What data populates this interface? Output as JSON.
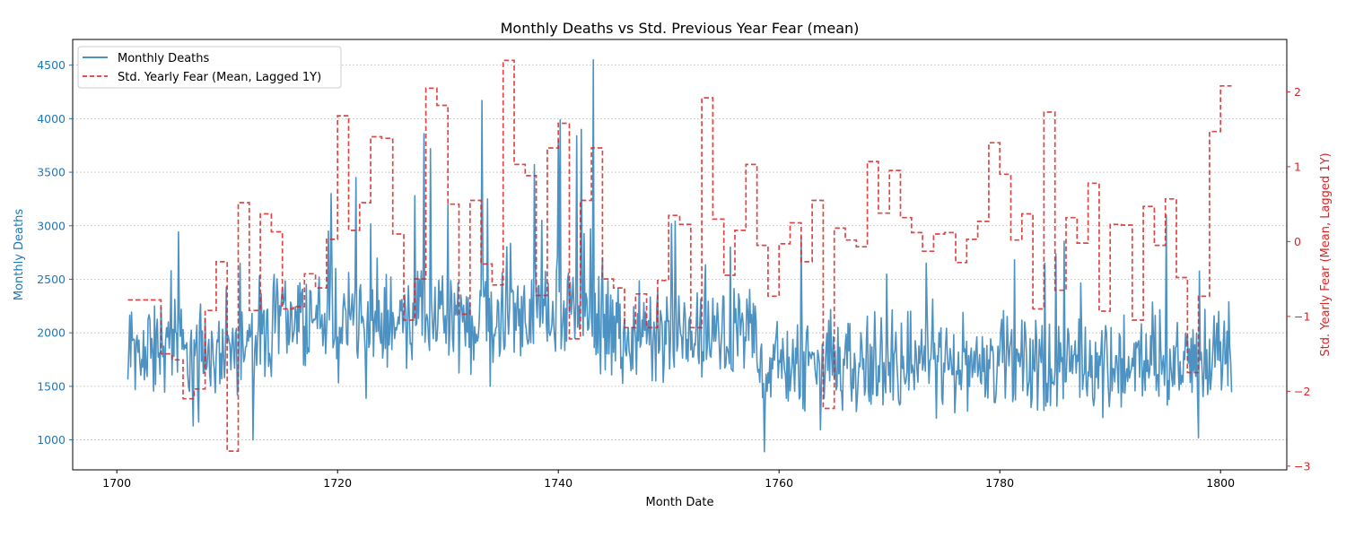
{
  "chart_data": {
    "type": "line",
    "title": "Monthly Deaths vs Std. Previous Year Fear (mean)",
    "xlabel": "Month Date",
    "ylabel_left": "Monthly Deaths",
    "ylabel_right": "Std. Yearly Fear (Mean, Lagged 1Y)",
    "xlim": [
      1696,
      1806
    ],
    "ylim_left": [
      720,
      4740
    ],
    "ylim_right": [
      -3.05,
      2.7
    ],
    "x_ticks": [
      1700,
      1720,
      1740,
      1760,
      1780,
      1800
    ],
    "y_left_ticks": [
      1000,
      1500,
      2000,
      2500,
      3000,
      3500,
      4000,
      4500
    ],
    "y_right_ticks": [
      -3,
      -2,
      -1,
      0,
      1,
      2
    ],
    "grid": "horizontal dotted",
    "legend_position": "top-left",
    "colors": {
      "deaths": "#1f77b4",
      "fear": "#d62728",
      "left_axis": "#1f77b4",
      "right_axis": "#d62728"
    },
    "series": [
      {
        "name": "Monthly Deaths",
        "axis": "left",
        "style": "solid",
        "x_start": 1701,
        "x_end": 1801,
        "n_points": 1201,
        "typical_range": [
          1100,
          2800
        ],
        "peak": {
          "x": 1743.2,
          "y": 4550
        },
        "min": {
          "x": 1758.7,
          "y": 890
        }
      },
      {
        "name": "Std. Yearly Fear (Mean, Lagged 1Y)",
        "axis": "right",
        "style": "dashed-step",
        "years": [
          1701,
          1702,
          1703,
          1704,
          1705,
          1706,
          1707,
          1708,
          1709,
          1710,
          1711,
          1712,
          1713,
          1714,
          1715,
          1716,
          1717,
          1718,
          1719,
          1720,
          1721,
          1722,
          1723,
          1724,
          1725,
          1726,
          1727,
          1728,
          1729,
          1730,
          1731,
          1732,
          1733,
          1734,
          1735,
          1736,
          1737,
          1738,
          1739,
          1740,
          1741,
          1742,
          1743,
          1744,
          1745,
          1746,
          1747,
          1748,
          1749,
          1750,
          1751,
          1752,
          1753,
          1754,
          1755,
          1756,
          1757,
          1758,
          1759,
          1760,
          1761,
          1762,
          1763,
          1764,
          1765,
          1766,
          1767,
          1768,
          1769,
          1770,
          1771,
          1772,
          1773,
          1774,
          1775,
          1776,
          1777,
          1778,
          1779,
          1780,
          1781,
          1782,
          1783,
          1784,
          1785,
          1786,
          1787,
          1788,
          1789,
          1790,
          1791,
          1792,
          1793,
          1794,
          1795,
          1796,
          1797,
          1798,
          1799,
          1800
        ],
        "values": [
          -0.78,
          -0.78,
          -0.78,
          -1.5,
          -1.58,
          -2.1,
          -1.97,
          -0.92,
          -0.27,
          -2.8,
          0.52,
          -0.92,
          0.37,
          0.13,
          -0.9,
          -0.87,
          -0.43,
          -0.62,
          0.03,
          1.68,
          0.15,
          0.52,
          1.4,
          1.38,
          0.1,
          -1.05,
          -0.5,
          2.05,
          1.82,
          0.5,
          -0.97,
          0.55,
          -0.3,
          -0.58,
          2.42,
          1.03,
          0.88,
          -0.72,
          1.25,
          1.58,
          -1.3,
          0.55,
          1.25,
          -0.5,
          -0.62,
          -1.15,
          -0.7,
          -1.15,
          -0.52,
          0.35,
          0.23,
          -1.15,
          1.92,
          0.3,
          -0.45,
          0.15,
          1.03,
          -0.05,
          -0.73,
          -0.03,
          0.25,
          -0.27,
          0.55,
          -2.23,
          0.18,
          0.02,
          -0.07,
          1.07,
          0.38,
          0.95,
          0.32,
          0.12,
          -0.13,
          0.1,
          0.12,
          -0.28,
          0.03,
          0.27,
          1.32,
          0.9,
          0.02,
          0.37,
          -0.9,
          1.73,
          -0.65,
          0.32,
          -0.02,
          0.78,
          -0.93,
          0.23,
          0.22,
          -1.05,
          0.47,
          -0.05,
          0.57,
          -0.48,
          -1.75,
          -0.73,
          1.47,
          2.08
        ]
      }
    ]
  }
}
